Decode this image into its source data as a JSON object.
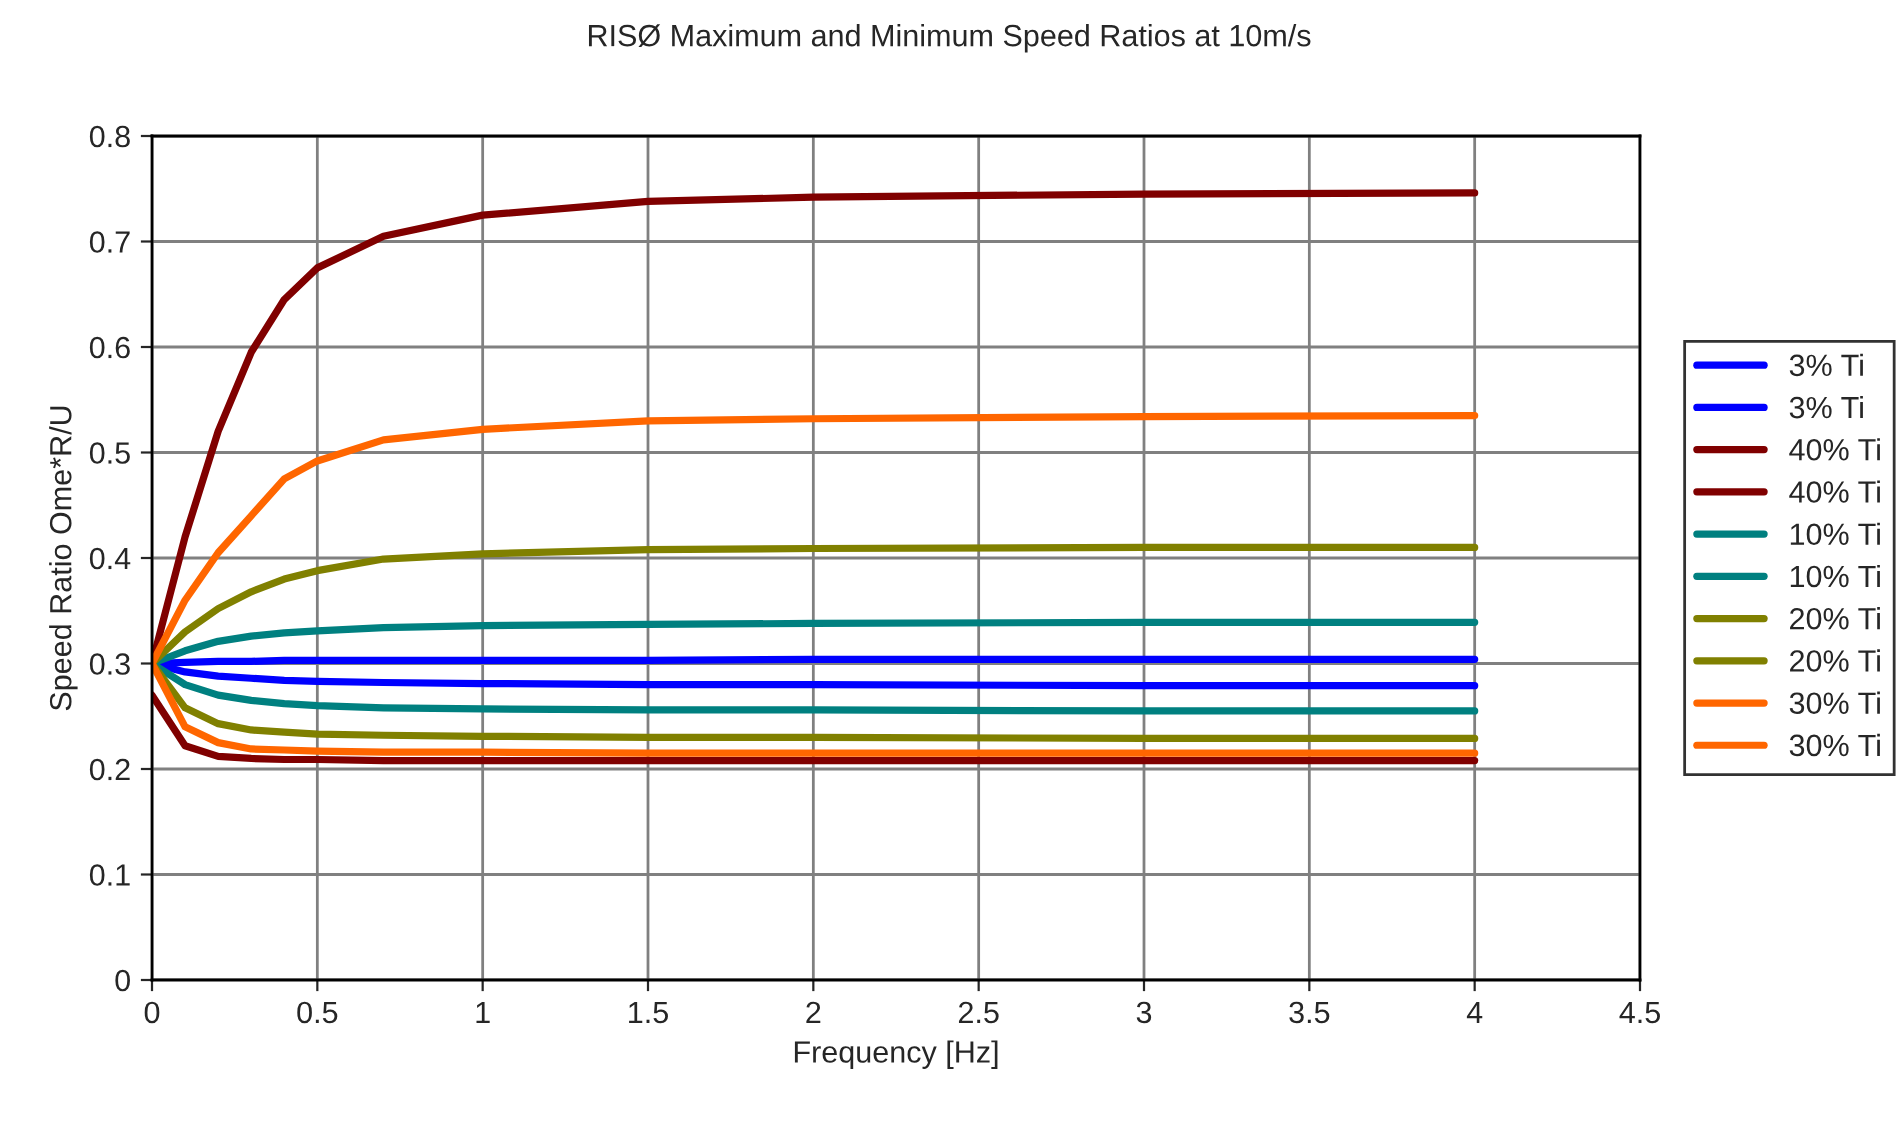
{
  "chart_data": {
    "type": "line",
    "title": "RISØ Maximum and Minimum Speed Ratios at 10m/s",
    "xlabel": "Frequency [Hz]",
    "ylabel": "Speed Ratio Ome*R/U",
    "xlim": [
      0,
      4.5
    ],
    "xticks": [
      0,
      0.5,
      1,
      1.5,
      2,
      2.5,
      3,
      3.5,
      4,
      4.5
    ],
    "ylim": [
      0,
      0.8
    ],
    "yticks": [
      0,
      0.1,
      0.2,
      0.3,
      0.4,
      0.5,
      0.6,
      0.7,
      0.8
    ],
    "grid": true,
    "legend": "right",
    "marker": "none",
    "line_style": "solid",
    "x": [
      0,
      0.1,
      0.2,
      0.3,
      0.4,
      0.5,
      0.7,
      1,
      1.5,
      2,
      3,
      4
    ],
    "series": [
      {
        "name": "3% Ti",
        "color": "#0000ff",
        "values": [
          0.3,
          0.301,
          0.302,
          0.302,
          0.303,
          0.303,
          0.303,
          0.303,
          0.303,
          0.304,
          0.304,
          0.304
        ]
      },
      {
        "name": "3% Ti",
        "color": "#0000ff",
        "values": [
          0.3,
          0.292,
          0.288,
          0.286,
          0.284,
          0.283,
          0.282,
          0.281,
          0.28,
          0.28,
          0.279,
          0.279
        ]
      },
      {
        "name": "40% Ti",
        "color": "#800000",
        "values": [
          0.3,
          0.42,
          0.52,
          0.595,
          0.645,
          0.675,
          0.705,
          0.725,
          0.738,
          0.742,
          0.745,
          0.746
        ]
      },
      {
        "name": "40% Ti",
        "color": "#800000",
        "values": [
          0.27,
          0.222,
          0.212,
          0.21,
          0.209,
          0.209,
          0.208,
          0.208,
          0.208,
          0.208,
          0.208,
          0.208
        ]
      },
      {
        "name": "10% Ti",
        "color": "#008080",
        "values": [
          0.3,
          0.312,
          0.321,
          0.326,
          0.329,
          0.331,
          0.334,
          0.336,
          0.337,
          0.338,
          0.339,
          0.339
        ]
      },
      {
        "name": "10% Ti",
        "color": "#008080",
        "values": [
          0.3,
          0.28,
          0.27,
          0.265,
          0.262,
          0.26,
          0.258,
          0.257,
          0.256,
          0.256,
          0.255,
          0.255
        ]
      },
      {
        "name": "20% Ti",
        "color": "#808000",
        "values": [
          0.3,
          0.33,
          0.352,
          0.368,
          0.38,
          0.388,
          0.399,
          0.404,
          0.408,
          0.409,
          0.41,
          0.41
        ]
      },
      {
        "name": "20% Ti",
        "color": "#808000",
        "values": [
          0.3,
          0.258,
          0.243,
          0.237,
          0.235,
          0.233,
          0.232,
          0.231,
          0.23,
          0.23,
          0.229,
          0.229
        ]
      },
      {
        "name": "30% Ti",
        "color": "#ff6600",
        "values": [
          0.3,
          0.36,
          0.405,
          0.44,
          0.475,
          0.492,
          0.512,
          0.522,
          0.53,
          0.532,
          0.534,
          0.535
        ]
      },
      {
        "name": "30% Ti",
        "color": "#ff6600",
        "values": [
          0.3,
          0.24,
          0.225,
          0.219,
          0.218,
          0.217,
          0.216,
          0.216,
          0.215,
          0.215,
          0.215,
          0.215
        ]
      }
    ]
  }
}
